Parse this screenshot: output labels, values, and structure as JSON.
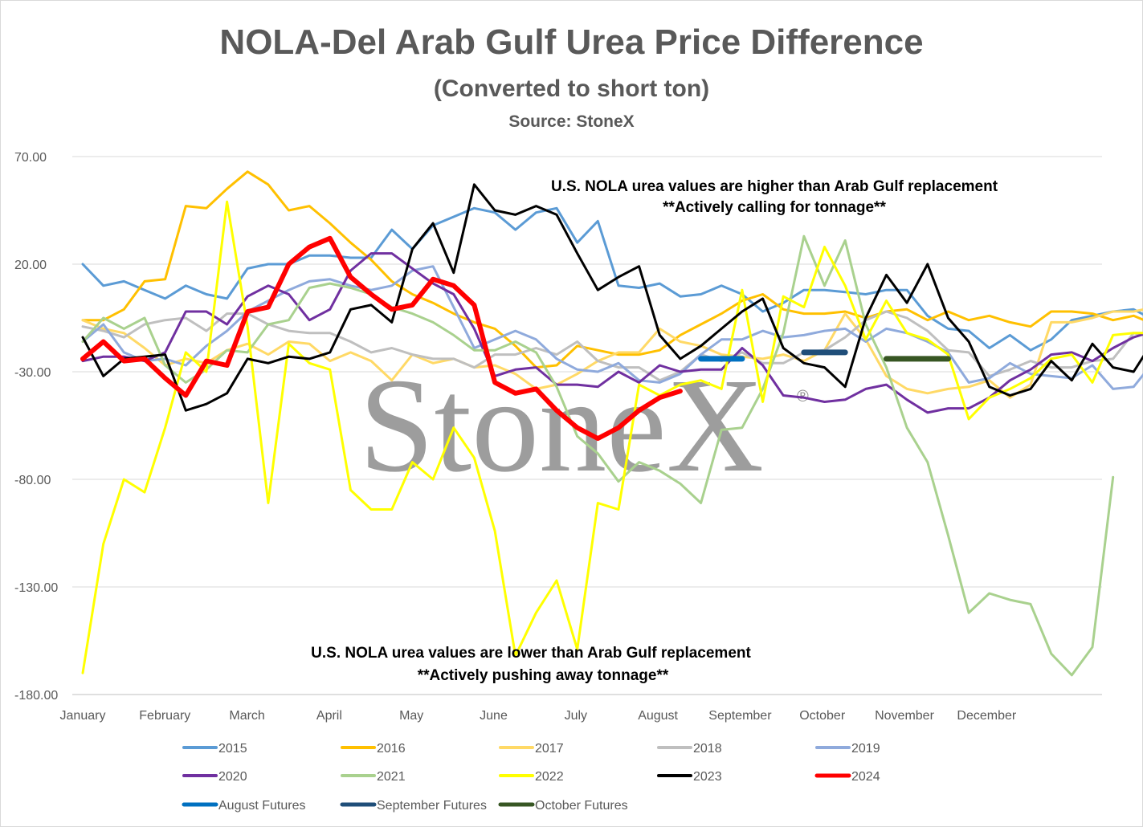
{
  "chart_data": {
    "type": "line",
    "title": "NOLA-Del Arab Gulf Urea Price Difference",
    "subtitle": "(Converted to short ton)",
    "source": "Source: StoneX",
    "watermark": "StoneX",
    "ylim": [
      -180,
      70
    ],
    "yticks": [
      "70.00",
      "20.00",
      "-30.00",
      "-80.00",
      "-130.00",
      "-180.00"
    ],
    "months": [
      "January",
      "February",
      "March",
      "April",
      "May",
      "June",
      "July",
      "August",
      "September",
      "October",
      "November",
      "December"
    ],
    "grid": true,
    "legend_position": "bottom",
    "annotations": {
      "upper": [
        "U.S. NOLA urea values are higher than Arab Gulf replacement",
        "**Actively calling for tonnage**"
      ],
      "lower": [
        "U.S. NOLA urea values are lower than Arab Gulf replacement",
        "**Actively pushing away tonnage**"
      ]
    },
    "series": [
      {
        "name": "2015",
        "color": "#5b9bd5",
        "width": 3,
        "values": [
          20,
          10,
          12,
          8,
          4,
          10,
          6,
          4,
          18,
          20,
          20,
          24,
          24,
          23,
          23,
          36,
          27,
          38,
          42,
          46,
          44,
          36,
          44,
          46,
          30,
          40,
          10,
          9,
          11,
          5,
          6,
          10,
          6,
          -2,
          2,
          8,
          8,
          7,
          6,
          8,
          8,
          -4,
          -10,
          -11,
          -19,
          -13,
          -20,
          -15,
          -6,
          -4,
          -2,
          -1,
          -6
        ]
      },
      {
        "name": "2016",
        "color": "#ffc000",
        "width": 3,
        "values": [
          -6,
          -6,
          -1,
          12,
          13,
          47,
          46,
          55,
          63,
          57,
          45,
          47,
          39,
          30,
          22,
          12,
          6,
          2,
          -3,
          -7,
          -10,
          -18,
          -28,
          -27,
          -18,
          -20,
          -22,
          -22,
          -20,
          -13,
          -8,
          -3,
          3,
          6,
          -1,
          -3,
          -3,
          -2,
          -5,
          -2,
          -1,
          -6,
          -2,
          -6,
          -4,
          -7,
          -9,
          -2,
          -2,
          -3,
          -6,
          -4,
          -8
        ]
      },
      {
        "name": "2017",
        "color": "#ffd966",
        "width": 3,
        "values": [
          -6,
          -10,
          -12,
          -19,
          -27,
          -24,
          -26,
          -20,
          -17,
          -22,
          -16,
          -17,
          -25,
          -21,
          -25,
          -34,
          -22,
          -26,
          -24,
          -28,
          -27,
          -31,
          -38,
          -36,
          -31,
          -25,
          -21,
          -21,
          -10,
          -16,
          -18,
          -22,
          -23,
          -24,
          -22,
          -25,
          -20,
          -3,
          -15,
          -32,
          -38,
          -40,
          -38,
          -37,
          -34,
          -42,
          -36,
          -7,
          -7,
          -5,
          -2,
          -2,
          0
        ]
      },
      {
        "name": "2018",
        "color": "#bfbfbf",
        "width": 3,
        "values": [
          -9,
          -11,
          -14,
          -8,
          -6,
          -5,
          -11,
          -3,
          -3,
          -8,
          -11,
          -12,
          -12,
          -16,
          -21,
          -19,
          -22,
          -24,
          -24,
          -28,
          -22,
          -22,
          -19,
          -22,
          -16,
          -25,
          -28,
          -28,
          -34,
          -30,
          -22,
          -25,
          -21,
          -26,
          -26,
          -21,
          -20,
          -14,
          -6,
          -2,
          -5,
          -11,
          -20,
          -21,
          -32,
          -29,
          -25,
          -28,
          -28,
          -25,
          -24,
          -12,
          -14
        ]
      },
      {
        "name": "2019",
        "color": "#8faadc",
        "width": 3,
        "values": [
          -16,
          -8,
          -21,
          -25,
          -24,
          -27,
          -18,
          -11,
          -2,
          3,
          8,
          12,
          13,
          10,
          8,
          10,
          17,
          19,
          0,
          -19,
          -15,
          -11,
          -15,
          -24,
          -29,
          -30,
          -26,
          -34,
          -35,
          -31,
          -22,
          -15,
          -15,
          -11,
          -14,
          -13,
          -11,
          -10,
          -16,
          -10,
          -12,
          -16,
          -21,
          -35,
          -33,
          -26,
          -31,
          -32,
          -33,
          -27,
          -38,
          -37,
          -25
        ]
      },
      {
        "name": "2020",
        "color": "#7030a0",
        "width": 3,
        "values": [
          -25,
          -23,
          -23,
          -25,
          -21,
          -2,
          -2,
          -8,
          5,
          10,
          6,
          -6,
          -1,
          17,
          25,
          25,
          18,
          11,
          6,
          -10,
          -32,
          -29,
          -28,
          -36,
          -36,
          -37,
          -30,
          -35,
          -27,
          -30,
          -29,
          -29,
          -19,
          -27,
          -41,
          -42,
          -44,
          -43,
          -38,
          -36,
          -43,
          -49,
          -47,
          -47,
          -42,
          -34,
          -29,
          -22,
          -21,
          -25,
          -19,
          -14,
          -11
        ]
      },
      {
        "name": "2021",
        "color": "#a9d18e",
        "width": 3,
        "values": [
          -16,
          -5,
          -10,
          -5,
          -27,
          -35,
          -29,
          -20,
          -21,
          -8,
          -6,
          9,
          11,
          9,
          6,
          0,
          -3,
          -7,
          -13,
          -20,
          -20,
          -16,
          -21,
          -37,
          -60,
          -68,
          -81,
          -72,
          -76,
          -82,
          -91,
          -57,
          -56,
          -38,
          -12,
          33,
          10,
          31,
          -8,
          -28,
          -56,
          -72,
          -106,
          -142,
          -133,
          -136,
          -138,
          -161,
          -171,
          -158,
          -79
        ]
      },
      {
        "name": "2022",
        "color": "#ffff00",
        "width": 3,
        "values": [
          -170,
          -110,
          -80,
          -86,
          -56,
          -21,
          -30,
          49,
          -9,
          -91,
          -17,
          -26,
          -29,
          -85,
          -94,
          -94,
          -72,
          -80,
          -56,
          -70,
          -104,
          -162,
          -142,
          -127,
          -159,
          -91,
          -94,
          -36,
          -41,
          -36,
          -34,
          -38,
          8,
          -44,
          5,
          0,
          28,
          10,
          -15,
          3,
          -12,
          -15,
          -22,
          -52,
          -42,
          -38,
          -33,
          -24,
          -22,
          -35,
          -13,
          -12,
          -12
        ]
      },
      {
        "name": "2023",
        "color": "#000000",
        "width": 3,
        "values": [
          -14,
          -32,
          -24,
          -23,
          -22,
          -48,
          -45,
          -40,
          -24,
          -26,
          -23,
          -24,
          -21,
          -1,
          1,
          -7,
          27,
          39,
          16,
          57,
          45,
          43,
          47,
          43,
          25,
          8,
          14,
          19,
          -13,
          -24,
          -18,
          -10,
          -2,
          4,
          -19,
          -26,
          -28,
          -37,
          -5,
          15,
          2,
          20,
          -5,
          -16,
          -37,
          -41,
          -38,
          -25,
          -34,
          -17,
          -28,
          -30,
          -15,
          -23,
          -28
        ]
      },
      {
        "name": "2024",
        "color": "#ff0000",
        "width": 6,
        "values": [
          -24,
          -16,
          -25,
          -24,
          -33,
          -41,
          -25,
          -27,
          -2,
          0,
          20,
          28,
          32,
          14,
          6,
          -1,
          1,
          13,
          10,
          1,
          -35,
          -40,
          -38,
          -48,
          -56,
          -61,
          -56,
          -48,
          -42,
          -39
        ]
      },
      {
        "name": "August Futures",
        "color": "#0070c0",
        "width": 7,
        "values": [
          -24,
          -24,
          -24
        ]
      },
      {
        "name": "September Futures",
        "color": "#1f4e79",
        "width": 7,
        "values": [
          -21,
          -21,
          -21
        ]
      },
      {
        "name": "October Futures",
        "color": "#375623",
        "width": 7,
        "values": [
          -24,
          -24,
          -24,
          -24
        ]
      }
    ]
  }
}
